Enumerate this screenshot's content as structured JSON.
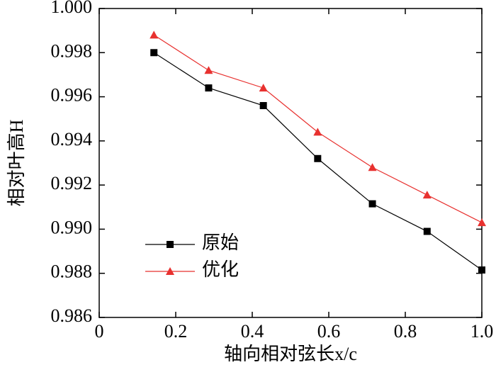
{
  "chart_data": {
    "type": "line",
    "xlabel": "轴向相对弦长x/c",
    "ylabel": "相对叶高H",
    "x": [
      0.143,
      0.286,
      0.429,
      0.571,
      0.714,
      0.857,
      1.0
    ],
    "series": [
      {
        "name": "原始",
        "color": "#000000",
        "marker": "square",
        "values": [
          0.998,
          0.9964,
          0.9956,
          0.9932,
          0.99115,
          0.9899,
          0.98815
        ]
      },
      {
        "name": "优化",
        "color": "#e8312f",
        "marker": "triangle",
        "values": [
          0.9988,
          0.9972,
          0.9964,
          0.9944,
          0.9928,
          0.99155,
          0.9903
        ]
      }
    ],
    "xlim": [
      0,
      1
    ],
    "xticks": [
      0,
      0.2,
      0.4,
      0.6,
      0.8,
      {
        "value": 1,
        "label": "1.0"
      }
    ],
    "ylim": [
      0.986,
      1.0
    ],
    "yticks": [
      0.986,
      0.988,
      {
        "value": 0.99,
        "label": "0.990"
      },
      0.992,
      0.994,
      0.996,
      0.998,
      {
        "value": 1,
        "label": "1.000"
      }
    ],
    "legend": "lower-left"
  }
}
